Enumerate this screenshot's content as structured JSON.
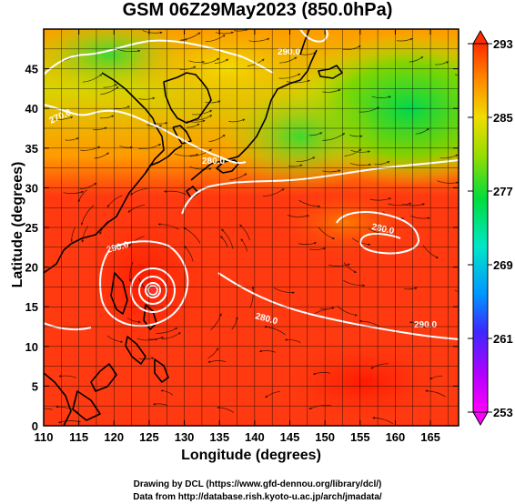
{
  "title": "GSM 06Z29May2023 (850.0hPa)",
  "xlabel": "Longitude (degrees)",
  "ylabel": "Latitude  (degrees)",
  "credit_line1": "Drawing by DCL (https://www.gfd-dennou.org/library/dcl/)",
  "credit_line2": "Data from http://database.rish.kyoto-u.ac.jp/arch/jmadata/",
  "map": {
    "lon_range": [
      110,
      169
    ],
    "lat_range": [
      0,
      50
    ],
    "lon_ticks": [
      110,
      115,
      120,
      125,
      130,
      135,
      140,
      145,
      150,
      155,
      160,
      165
    ],
    "lat_ticks": [
      0,
      5,
      10,
      15,
      20,
      25,
      30,
      35,
      40,
      45
    ],
    "grid_spacing_deg": 2.5,
    "contour_labels": [
      "270.0",
      "280.0",
      "280.0",
      "280.0",
      "290.0",
      "290.0",
      "290.0"
    ],
    "typhoon_center": {
      "lon": 126,
      "lat": 19.5
    }
  },
  "colorbar": {
    "min": 253,
    "max": 293,
    "tick_labels": [
      "293",
      "285",
      "277",
      "269",
      "261",
      "253"
    ],
    "stops": [
      "#ff00ff",
      "#b400ff",
      "#3c28ff",
      "#0096ff",
      "#00e6c8",
      "#00dc3c",
      "#9bdc00",
      "#f0dc00",
      "#ff8c00",
      "#ff2d00"
    ]
  }
}
